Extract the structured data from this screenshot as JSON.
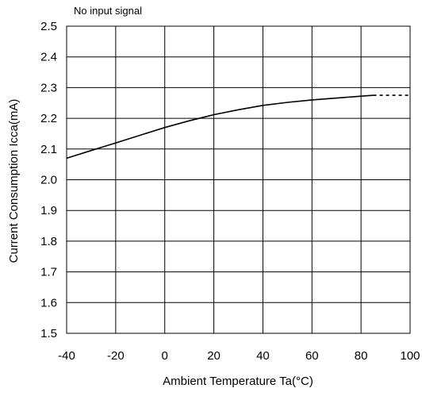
{
  "chart_data": {
    "type": "line",
    "title": "",
    "annotation": "No input signal",
    "xlabel": "Ambient Temperature Ta(°C)",
    "ylabel": "Current Consumption Icca(mA)",
    "xlim": [
      -40,
      100
    ],
    "ylim": [
      1.5,
      2.5
    ],
    "x_ticks": [
      "-40",
      "-20",
      "0",
      "20",
      "40",
      "60",
      "80",
      "100"
    ],
    "y_ticks": [
      "2.5",
      "2.4",
      "2.3",
      "2.2",
      "2.1",
      "2.0",
      "1.9",
      "1.8",
      "1.7",
      "1.6",
      "1.5"
    ],
    "grid": true,
    "legend": "none",
    "series": [
      {
        "style": "solid",
        "color": "#000000",
        "x": [
          -40,
          -30,
          -20,
          -10,
          0,
          10,
          20,
          30,
          40,
          50,
          60,
          70,
          80,
          85
        ],
        "y": [
          2.07,
          2.095,
          2.12,
          2.145,
          2.17,
          2.192,
          2.212,
          2.228,
          2.242,
          2.252,
          2.26,
          2.266,
          2.272,
          2.275
        ]
      },
      {
        "style": "dashed",
        "color": "#000000",
        "x": [
          85,
          100
        ],
        "y": [
          2.275,
          2.275
        ]
      }
    ]
  }
}
